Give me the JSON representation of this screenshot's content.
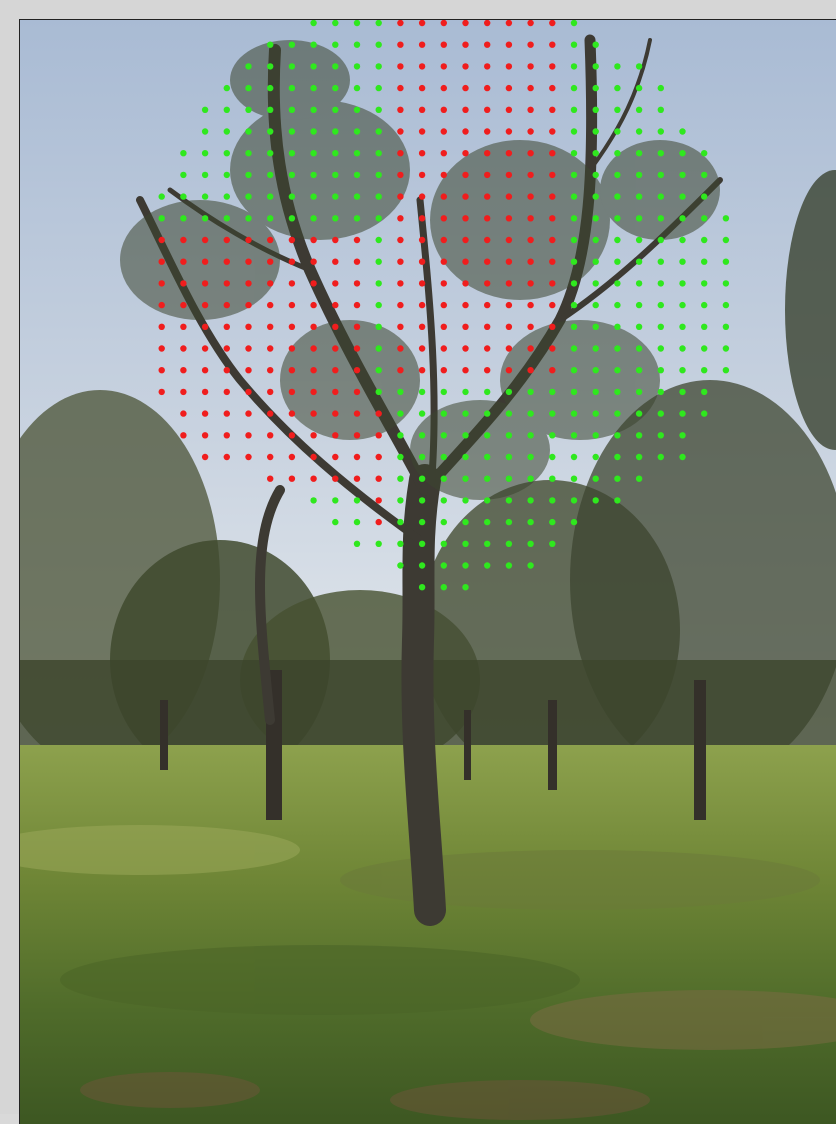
{
  "photo": {
    "subject": "tree-with-point-grid-overlay",
    "colors": {
      "sky_top": "#aebfd6",
      "sky_bottom": "#e6ebef",
      "grass_light": "#7c9440",
      "grass_dark": "#3f5a22",
      "trunk": "#3d3a33",
      "foliage": "#3c4630",
      "dot_positive": "#2fe81e",
      "dot_negative": "#f01d1d"
    }
  }
}
